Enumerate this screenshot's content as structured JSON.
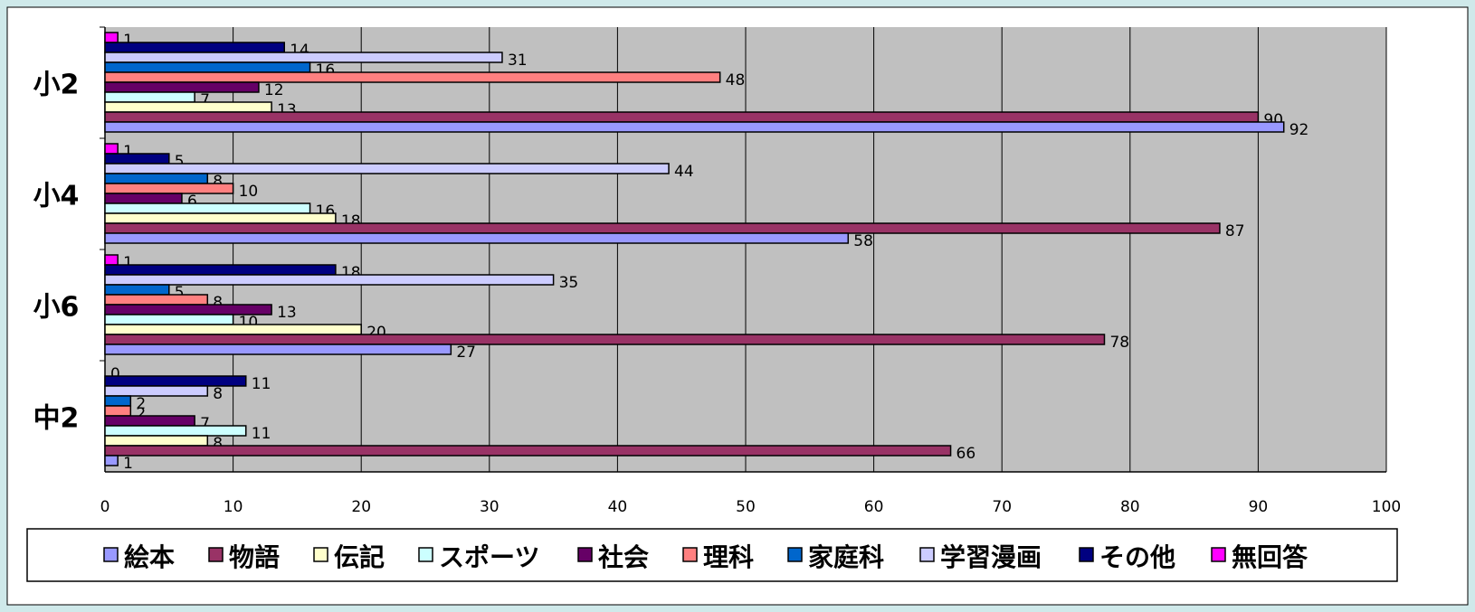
{
  "chart_data": {
    "type": "bar",
    "orientation": "horizontal",
    "categories": [
      "小2",
      "小4",
      "小6",
      "中2"
    ],
    "series": [
      {
        "name": "絵本",
        "color": "#9999ff",
        "values": [
          92,
          58,
          27,
          1
        ]
      },
      {
        "name": "物語",
        "color": "#993366",
        "values": [
          90,
          87,
          78,
          66
        ]
      },
      {
        "name": "伝記",
        "color": "#ffffcc",
        "values": [
          13,
          18,
          20,
          8
        ]
      },
      {
        "name": "スポーツ",
        "color": "#ccffff",
        "values": [
          7,
          16,
          10,
          11
        ]
      },
      {
        "name": "社会",
        "color": "#660066",
        "values": [
          12,
          6,
          13,
          7
        ]
      },
      {
        "name": "理科",
        "color": "#ff8080",
        "values": [
          48,
          10,
          8,
          2
        ]
      },
      {
        "name": "家庭科",
        "color": "#0066cc",
        "values": [
          16,
          8,
          5,
          2
        ]
      },
      {
        "name": "学習漫画",
        "color": "#ccccff",
        "values": [
          31,
          44,
          35,
          8
        ]
      },
      {
        "name": "その他",
        "color": "#000080",
        "values": [
          14,
          5,
          18,
          11
        ]
      },
      {
        "name": "無回答",
        "color": "#ff00ff",
        "values": [
          1,
          1,
          1,
          0
        ]
      }
    ],
    "xlim": [
      0,
      100
    ],
    "xticks": [
      0,
      10,
      20,
      30,
      40,
      50,
      60,
      70,
      80,
      90,
      100
    ],
    "grid": true,
    "data_labels": true,
    "legend_position": "bottom",
    "plot_background": "#c0c0c0"
  }
}
